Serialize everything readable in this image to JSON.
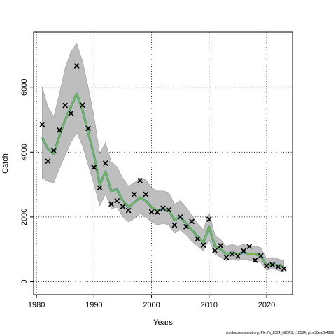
{
  "chart_data": {
    "type": "line",
    "xlabel": "Years",
    "ylabel": "Catch",
    "xlim": [
      1979.5,
      2024.5
    ],
    "ylim": [
      -400,
      7700
    ],
    "x_ticks": [
      1980,
      1990,
      2000,
      2010,
      2020
    ],
    "y_ticks": [
      0,
      2000,
      4000,
      6000
    ],
    "grid": true,
    "grid_style": "dotted",
    "years": [
      1981,
      1982,
      1983,
      1984,
      1985,
      1986,
      1987,
      1988,
      1989,
      1990,
      1991,
      1992,
      1993,
      1994,
      1995,
      1996,
      1997,
      1998,
      1999,
      2000,
      2001,
      2002,
      2003,
      2004,
      2005,
      2006,
      2007,
      2008,
      2009,
      2010,
      2011,
      2012,
      2013,
      2014,
      2015,
      2016,
      2017,
      2018,
      2019,
      2020,
      2021,
      2022,
      2023
    ],
    "series": [
      {
        "role": "fitted",
        "values": [
          4450,
          4100,
          3950,
          4500,
          5000,
          5400,
          5800,
          5300,
          4600,
          3900,
          3000,
          3400,
          2800,
          2850,
          2500,
          2300,
          2450,
          2600,
          2500,
          2300,
          2200,
          2250,
          2200,
          1900,
          2000,
          1800,
          1600,
          1400,
          1200,
          1700,
          1100,
          1000,
          850,
          900,
          850,
          900,
          850,
          850,
          800,
          500,
          550,
          500,
          450
        ],
        "upper": [
          6000,
          5400,
          5100,
          5800,
          6600,
          7100,
          7350,
          6800,
          6000,
          5100,
          3950,
          4300,
          3700,
          3550,
          3200,
          2950,
          3050,
          3200,
          3150,
          2900,
          2800,
          2800,
          2750,
          2400,
          2500,
          2300,
          2050,
          1800,
          1600,
          2150,
          1450,
          1300,
          1100,
          1150,
          1100,
          1150,
          1100,
          1100,
          1050,
          700,
          750,
          700,
          650
        ],
        "lower": [
          3200,
          3100,
          3050,
          3500,
          3900,
          4300,
          4600,
          4200,
          3600,
          3000,
          2350,
          2700,
          2250,
          2300,
          2000,
          1850,
          1950,
          2100,
          2000,
          1850,
          1750,
          1800,
          1750,
          1500,
          1600,
          1450,
          1250,
          1100,
          950,
          1300,
          850,
          750,
          650,
          700,
          650,
          700,
          650,
          650,
          600,
          350,
          400,
          350,
          300
        ]
      },
      {
        "role": "observed",
        "values": [
          4850,
          3720,
          4050,
          4680,
          5440,
          5200,
          6660,
          5450,
          4730,
          3530,
          2900,
          3660,
          2400,
          2500,
          2320,
          2200,
          2700,
          3120,
          2700,
          2160,
          2150,
          2270,
          2220,
          1750,
          2000,
          1700,
          1860,
          1320,
          1130,
          1930,
          960,
          1110,
          750,
          850,
          790,
          950,
          1090,
          660,
          800,
          490,
          520,
          460,
          400
        ]
      }
    ],
    "colors": {
      "band": "#bebebe",
      "band_edge": "#9a9a9a",
      "fit_line": "#7ab648",
      "fit_line_shadow": "#2a8fbf",
      "observed_marker": "#000000"
    }
  },
  "caption": "stockassessment.org, Ple.7a_2024_NIOFS, r18184, git:e38ea2b4989"
}
